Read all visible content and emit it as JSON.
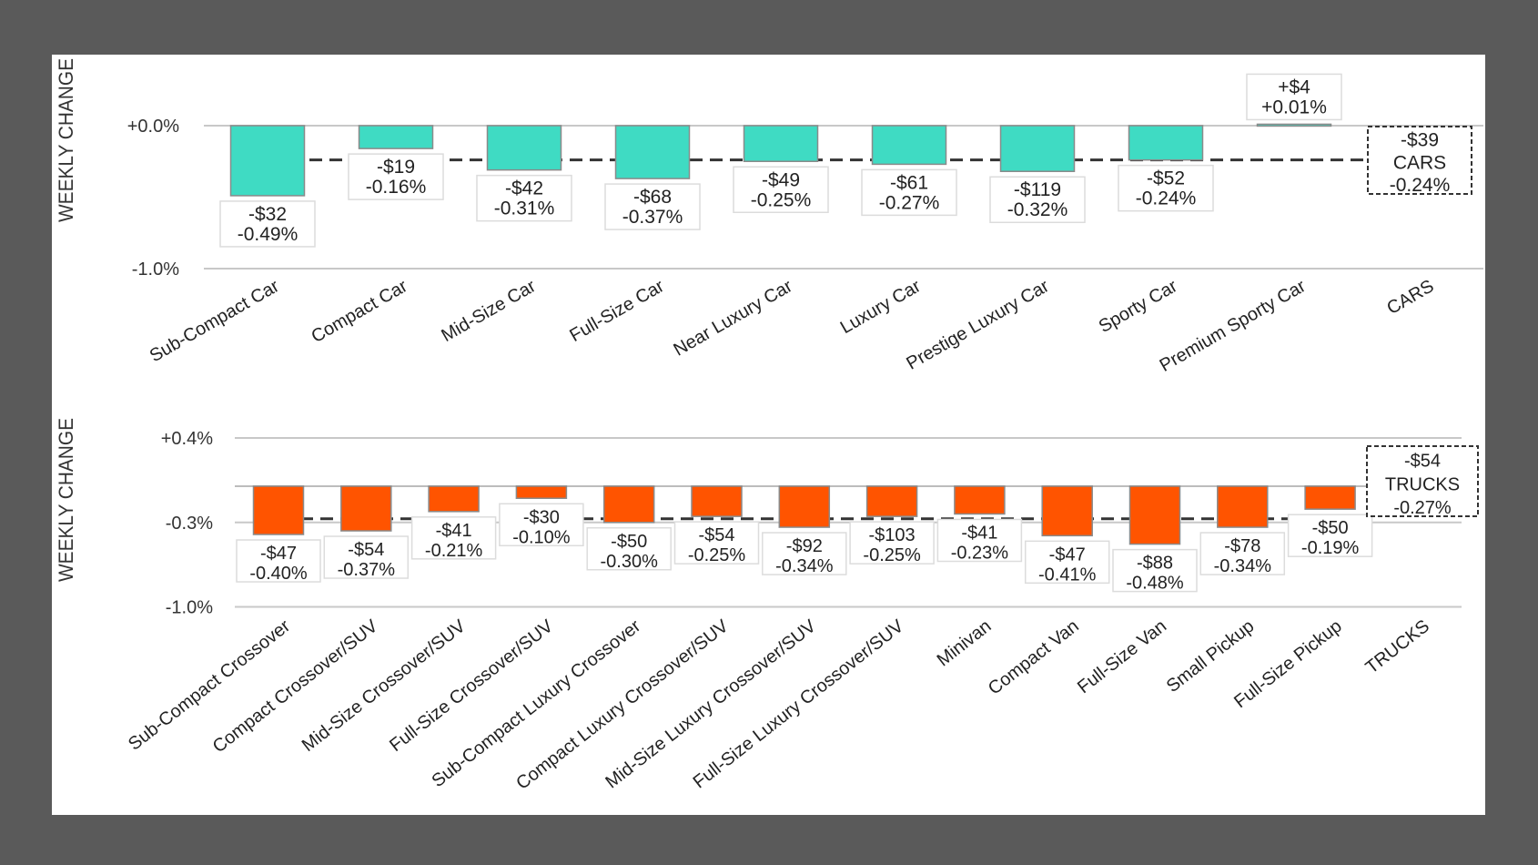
{
  "colors": {
    "background": "#5a5a5a",
    "panel": "#ffffff",
    "cars_bar": "#3fdbc3",
    "trucks_bar": "#ff5400",
    "grid": "#c8c8c8",
    "text": "#222222"
  },
  "chart_data": [
    {
      "type": "bar",
      "title": "",
      "ylabel": "WEEKLY CHANGE",
      "xlabel": "",
      "ylim": [
        -1.0,
        0.0
      ],
      "yticks": [
        {
          "value": 0.0,
          "label": "+0.0%"
        },
        {
          "value": -1.0,
          "label": "-1.0%"
        }
      ],
      "grid": true,
      "categories": [
        "Sub-Compact Car",
        "Compact Car",
        "Mid-Size Car",
        "Full-Size Car",
        "Near Luxury Car",
        "Luxury Car",
        "Prestige Luxury Car",
        "Sporty Car",
        "Premium Sporty Car",
        "CARS"
      ],
      "values_pct": [
        -0.49,
        -0.16,
        -0.31,
        -0.37,
        -0.25,
        -0.27,
        -0.32,
        -0.24,
        0.01
      ],
      "values_dollar": [
        "-$32",
        "-$19",
        "-$42",
        "-$68",
        "-$49",
        "-$61",
        "-$119",
        "-$52",
        "+$4"
      ],
      "pct_labels": [
        "-0.49%",
        "-0.16%",
        "-0.31%",
        "-0.37%",
        "-0.25%",
        "-0.27%",
        "-0.32%",
        "-0.24%",
        "+0.01%"
      ],
      "total": {
        "name": "CARS",
        "dollar": "-$39",
        "pct": -0.24,
        "pct_label": "-0.24%"
      },
      "reference_line": {
        "style": "dashed",
        "value": -0.24
      }
    },
    {
      "type": "bar",
      "title": "",
      "ylabel": "WEEKLY CHANGE",
      "xlabel": "",
      "ylim": [
        -1.0,
        0.4
      ],
      "yticks": [
        {
          "value": 0.4,
          "label": "+0.4%"
        },
        {
          "value": -0.3,
          "label": "-0.3%"
        },
        {
          "value": -1.0,
          "label": "-1.0%"
        }
      ],
      "grid": true,
      "categories": [
        "Sub-Compact Crossover",
        "Compact Crossover/SUV",
        "Mid-Size Crossover/SUV",
        "Full-Size Crossover/SUV",
        "Sub-Compact Luxury Crossover",
        "Compact Luxury Crossover/SUV",
        "Mid-Size Luxury Crossover/SUV",
        "Full-Size Luxury Crossover/SUV",
        "Minivan",
        "Compact Van",
        "Full-Size Van",
        "Small Pickup",
        "Full-Size Pickup",
        "TRUCKS"
      ],
      "values_pct": [
        -0.4,
        -0.37,
        -0.21,
        -0.1,
        -0.3,
        -0.25,
        -0.34,
        -0.25,
        -0.23,
        -0.41,
        -0.48,
        -0.34,
        -0.19
      ],
      "values_dollar": [
        "-$47",
        "-$54",
        "-$41",
        "-$30",
        "-$50",
        "-$54",
        "-$92",
        "-$103",
        "-$41",
        "-$47",
        "-$88",
        "-$78",
        "-$50"
      ],
      "pct_labels": [
        "-0.40%",
        "-0.37%",
        "-0.21%",
        "-0.10%",
        "-0.30%",
        "-0.25%",
        "-0.34%",
        "-0.25%",
        "-0.23%",
        "-0.41%",
        "-0.48%",
        "-0.34%",
        "-0.19%"
      ],
      "total": {
        "name": "TRUCKS",
        "dollar": "-$54",
        "pct": -0.27,
        "pct_label": "-0.27%"
      },
      "reference_line": {
        "style": "dashed",
        "value": -0.27
      }
    }
  ]
}
